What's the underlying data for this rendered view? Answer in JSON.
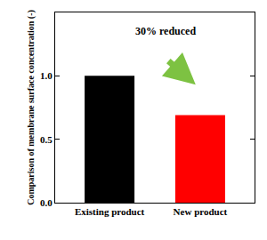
{
  "chart_data": {
    "type": "bar",
    "categories": [
      "Existing product",
      "New product"
    ],
    "values": [
      1.0,
      0.69
    ],
    "colors": [
      "#000000",
      "#ff0000"
    ],
    "ylabel": "Comparison of membrane surface concentration (-)",
    "ylim": [
      0,
      1.5
    ],
    "yticks": [
      {
        "value": 0,
        "label": "0.0"
      },
      {
        "value": 0.5,
        "label": "0.5"
      },
      {
        "value": 1.0,
        "label": "1.0"
      }
    ],
    "annotation": "30% reduced",
    "grid": false
  }
}
